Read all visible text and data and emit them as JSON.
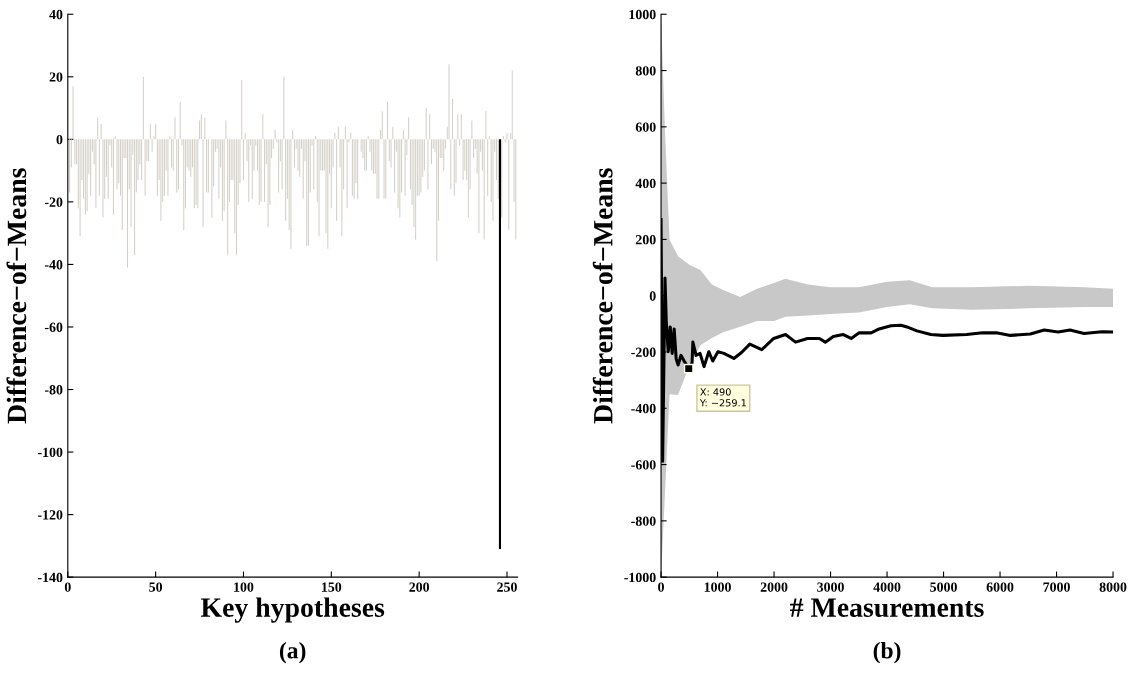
{
  "chart_data": [
    {
      "type": "bar",
      "xlabel": "Key hypotheses",
      "ylabel": "Difference−of−Means",
      "annotations": [
        "(a)"
      ],
      "xlim": [
        0,
        256
      ],
      "xticks": [
        0,
        50,
        100,
        150,
        200,
        250
      ],
      "ylim": [
        -140,
        40
      ],
      "yticks": [
        -140,
        -120,
        -100,
        -80,
        -60,
        -40,
        -20,
        0,
        20,
        40
      ],
      "grid": false,
      "legend": false,
      "x": [
        1,
        2,
        3,
        4,
        5,
        6,
        7,
        8,
        9,
        10,
        11,
        12,
        13,
        14,
        15,
        16,
        17,
        18,
        19,
        20,
        21,
        22,
        23,
        24,
        25,
        26,
        27,
        28,
        29,
        30,
        31,
        32,
        33,
        34,
        35,
        36,
        37,
        38,
        39,
        40,
        41,
        42,
        43,
        44,
        45,
        46,
        47,
        48,
        49,
        50,
        51,
        52,
        53,
        54,
        55,
        56,
        57,
        58,
        59,
        60,
        61,
        62,
        63,
        64,
        65,
        66,
        67,
        68,
        69,
        70,
        71,
        72,
        73,
        74,
        75,
        76,
        77,
        78,
        79,
        80,
        81,
        82,
        83,
        84,
        85,
        86,
        87,
        88,
        89,
        90,
        91,
        92,
        93,
        94,
        95,
        96,
        97,
        98,
        99,
        100,
        101,
        102,
        103,
        104,
        105,
        106,
        107,
        108,
        109,
        110,
        111,
        112,
        113,
        114,
        115,
        116,
        117,
        118,
        119,
        120,
        121,
        122,
        123,
        124,
        125,
        126,
        127,
        128,
        129,
        130,
        131,
        132,
        133,
        134,
        135,
        136,
        137,
        138,
        139,
        140,
        141,
        142,
        143,
        144,
        145,
        146,
        147,
        148,
        149,
        150,
        151,
        152,
        153,
        154,
        155,
        156,
        157,
        158,
        159,
        160,
        161,
        162,
        163,
        164,
        165,
        166,
        167,
        168,
        169,
        170,
        171,
        172,
        173,
        174,
        175,
        176,
        177,
        178,
        179,
        180,
        181,
        182,
        183,
        184,
        185,
        186,
        187,
        188,
        189,
        190,
        191,
        192,
        193,
        194,
        195,
        196,
        197,
        198,
        199,
        200,
        201,
        202,
        203,
        204,
        205,
        206,
        207,
        208,
        209,
        210,
        211,
        212,
        213,
        214,
        215,
        216,
        217,
        218,
        219,
        220,
        221,
        222,
        223,
        224,
        225,
        226,
        227,
        228,
        229,
        230,
        231,
        232,
        233,
        234,
        235,
        236,
        237,
        238,
        239,
        240,
        241,
        242,
        243,
        244,
        245,
        246,
        247,
        248,
        249,
        250,
        251,
        252,
        253,
        254,
        255
      ],
      "series": [
        {
          "color": "#d4d0c8",
          "values": [
            -17,
            -9,
            17,
            -8,
            -8,
            -22,
            -31,
            -13,
            -19,
            -24,
            -23,
            -11,
            -18,
            -4,
            -8,
            -22,
            7,
            -18,
            5,
            -25,
            -19,
            -12,
            -19,
            -2,
            -9,
            -24,
            1,
            -16,
            -14,
            -18,
            -29,
            -6,
            -6,
            -41,
            -16,
            -28,
            -5,
            -37,
            -17,
            -13,
            -8,
            -13,
            20,
            -18,
            -7,
            -7,
            5,
            -4,
            1,
            5,
            -18,
            -13,
            -26,
            -20,
            -18,
            -10,
            -18,
            1,
            -9,
            -10,
            7,
            -17,
            -16,
            12,
            -2,
            -29,
            -22,
            -9,
            -10,
            -12,
            -9,
            -22,
            -21,
            -22,
            6,
            8,
            -28,
            7,
            -17,
            -17,
            0,
            -25,
            -15,
            -4,
            -3,
            -19,
            -9,
            -26,
            -23,
            6,
            -37,
            -20,
            -13,
            -13,
            -30,
            -37,
            -21,
            -14,
            19,
            -13,
            2,
            -7,
            -20,
            -2,
            -19,
            -10,
            -2,
            -10,
            -21,
            -20,
            8,
            -20,
            -8,
            -28,
            -21,
            -6,
            -3,
            3,
            -1,
            -17,
            -7,
            -16,
            20,
            -26,
            -19,
            -29,
            -35,
            3,
            -9,
            -3,
            -10,
            -12,
            -3,
            -19,
            -7,
            -34,
            -34,
            -17,
            -2,
            -16,
            1,
            -20,
            -31,
            -10,
            -10,
            -10,
            -30,
            -35,
            -11,
            -22,
            -9,
            2,
            -26,
            4,
            -9,
            -31,
            -16,
            4,
            -22,
            -1,
            2,
            -18,
            -19,
            -14,
            -19,
            0,
            -4,
            -6,
            -10,
            -10,
            1,
            -4,
            -10,
            -11,
            -11,
            -19,
            -19,
            3,
            9,
            -19,
            -19,
            12,
            -7,
            -9,
            4,
            -17,
            -4,
            -22,
            -25,
            -17,
            3,
            -18,
            -5,
            7,
            -16,
            -21,
            -28,
            -32,
            -18,
            -18,
            -17,
            -12,
            -10,
            10,
            -16,
            8,
            -8,
            -3,
            -4,
            -39,
            -26,
            -6,
            -6,
            -10,
            -3,
            4,
            24,
            -16,
            13,
            -18,
            -14,
            8,
            -2,
            8,
            -13,
            -10,
            -13,
            -25,
            -16,
            6,
            -6,
            -3,
            -11,
            -30,
            -4,
            -10,
            -32,
            9,
            -18,
            1,
            -20,
            -26,
            -4,
            -13,
            -19,
            null,
            -25,
            1,
            -1,
            2,
            -29,
            2,
            22,
            -20,
            -32
          ]
        },
        {
          "color": "#000000",
          "x": [
            246
          ],
          "values": [
            -131
          ]
        }
      ]
    },
    {
      "type": "line",
      "xlabel": "# Measurements",
      "ylabel": "Difference−of−Means",
      "annotations": [
        "(b)",
        {
          "text": "X: 490\nY: −259.1",
          "x": 490,
          "y": -259.1
        }
      ],
      "xlim": [
        0,
        8000
      ],
      "xticks": [
        0,
        1000,
        2000,
        3000,
        4000,
        5000,
        6000,
        7000,
        8000
      ],
      "ylim": [
        -1000,
        1000
      ],
      "yticks": [
        -1000,
        -800,
        -600,
        -400,
        -200,
        0,
        200,
        400,
        600,
        800,
        1000
      ],
      "grid": false,
      "legend": false,
      "marker": "none",
      "line_style": "solid",
      "series": [
        {
          "color": "#c8c8c8",
          "x": [
            0,
            70,
            150,
            300,
            500,
            700,
            900,
            1100,
            1400,
            1700,
            2000,
            2200,
            2600,
            3000,
            3500,
            4000,
            4400,
            4800,
            5500,
            6500,
            7500,
            8000
          ],
          "values": [
            null,
            null,
            null,
            null,
            null,
            null,
            null,
            null,
            null,
            null,
            null,
            null,
            null,
            null,
            null,
            null,
            null,
            null,
            null,
            null,
            null,
            null
          ],
          "upper": [
            1000,
            580,
            200,
            140,
            110,
            90,
            40,
            20,
            -5,
            25,
            45,
            60,
            40,
            30,
            30,
            50,
            55,
            30,
            30,
            35,
            30,
            25
          ],
          "lower": [
            -1000,
            -700,
            -350,
            -353,
            -250,
            -175,
            -150,
            -130,
            -110,
            -90,
            -90,
            -75,
            -70,
            -65,
            -60,
            -40,
            -30,
            -45,
            -50,
            -45,
            -40,
            -40
          ]
        },
        {
          "color": "#000000",
          "x": [
            0,
            28,
            70,
            92,
            127,
            162,
            197,
            232,
            268,
            303,
            352,
            408,
            490,
            549,
            563,
            620,
            690,
            761,
            845,
            915,
            1007,
            1113,
            1289,
            1430,
            1570,
            1782,
            1993,
            2204,
            2380,
            2592,
            2803,
            2908,
            3049,
            3225,
            3366,
            3507,
            3718,
            3859,
            4070,
            4246,
            4352,
            4528,
            4775,
            4986,
            5408,
            5690,
            5937,
            6183,
            6535,
            6782,
            7028,
            7239,
            7486,
            7803,
            8000
          ],
          "values": [
            271,
            -588,
            63,
            -91,
            -199,
            -111,
            -205,
            -118,
            -225,
            -246,
            -212,
            -232,
            -259.1,
            -239,
            -165,
            -212,
            -205,
            -252,
            -199,
            -232,
            -199,
            -205,
            -223,
            -201,
            -172,
            -192,
            -152,
            -138,
            -165,
            -152,
            -152,
            -165,
            -145,
            -138,
            -152,
            -132,
            -132,
            -118,
            -107,
            -105,
            -111,
            -125,
            -138,
            -141,
            -138,
            -132,
            -132,
            -141,
            -136,
            -122,
            -129,
            -122,
            -134,
            -128,
            -129
          ]
        }
      ]
    }
  ]
}
